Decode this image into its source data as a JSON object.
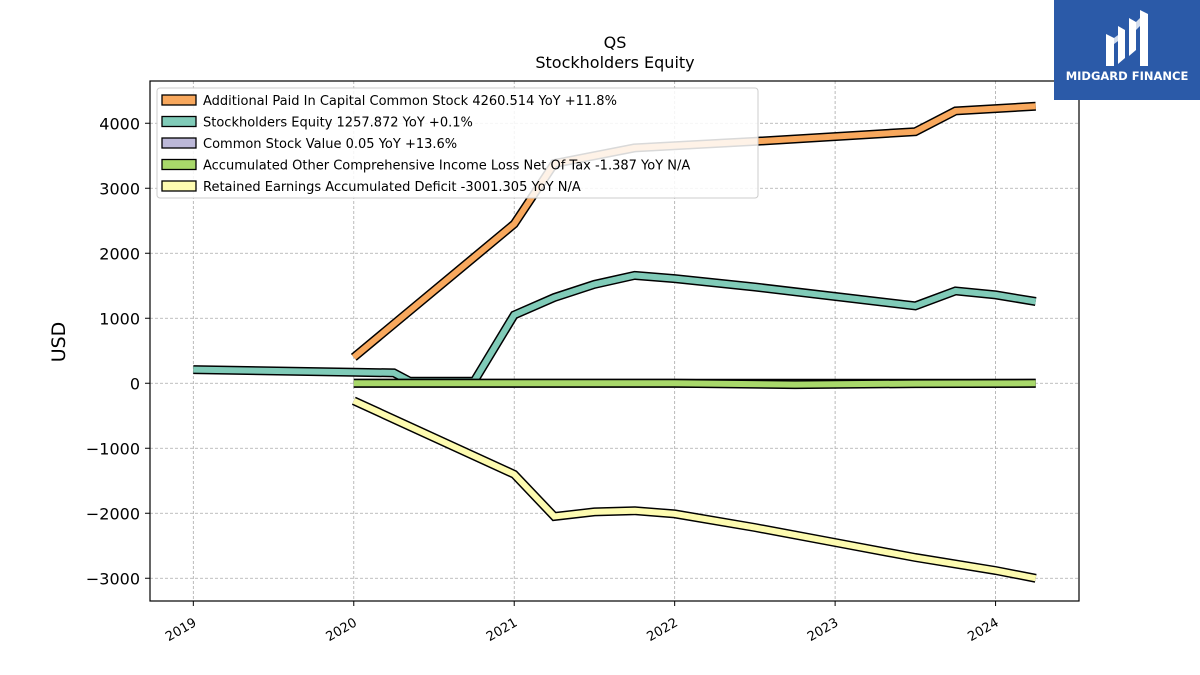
{
  "chart_data": {
    "type": "line",
    "title": "QS",
    "subtitle": "Stockholders  Equity",
    "ylabel": "USD",
    "xlabel": "",
    "ylim": [
      -3350,
      4650
    ],
    "xlim": [
      2018.73,
      2024.52
    ],
    "yticks": [
      4000,
      3000,
      2000,
      1000,
      0,
      -1000,
      -2000,
      -3000
    ],
    "ytick_labels": [
      "4000",
      "3000",
      "2000",
      "1000",
      "0",
      "−1000",
      "−2000",
      "−3000"
    ],
    "xticks": [
      2019,
      2020,
      2021,
      2022,
      2023,
      2024
    ],
    "xtick_labels": [
      "2019",
      "2020",
      "2021",
      "2022",
      "2023",
      "2024"
    ],
    "grid": true,
    "legend_position": "top-left",
    "series": [
      {
        "name": "Additional Paid In Capital Common Stock",
        "legend": "Additional Paid In Capital Common Stock  4260.514 YoY +11.8%",
        "color": "#f8a85d",
        "x": [
          2020.0,
          2021.0,
          2021.25,
          2021.75,
          2022.5,
          2023.5,
          2023.75,
          2024.25
        ],
        "y": [
          400,
          2450,
          3380,
          3620,
          3720,
          3870,
          4190,
          4260
        ]
      },
      {
        "name": "Stockholders Equity",
        "legend": "Stockholders Equity  1257.872 YoY +0.1%",
        "color": "#80cbb8",
        "x": [
          2019.0,
          2020.0,
          2020.25,
          2020.35,
          2020.75,
          2021.0,
          2021.25,
          2021.5,
          2021.75,
          2022.0,
          2022.5,
          2023.5,
          2023.75,
          2024.0,
          2024.25
        ],
        "y": [
          210,
          170,
          160,
          30,
          30,
          1050,
          1320,
          1520,
          1660,
          1610,
          1480,
          1190,
          1420,
          1360,
          1258
        ]
      },
      {
        "name": "Common Stock Value",
        "legend": "Common Stock Value  0.05 YoY +13.6%",
        "color": "#bcb8d8",
        "x": [
          2020.0,
          2024.25
        ],
        "y": [
          0.04,
          0.05
        ]
      },
      {
        "name": "Accumulated Other Comprehensive Income Loss Net Of Tax",
        "legend": "Accumulated Other Comprehensive Income Loss Net Of Tax  -1.387 YoY N/A",
        "color": "#a8d86a",
        "x": [
          2020.0,
          2021.0,
          2022.0,
          2022.75,
          2023.5,
          2024.25
        ],
        "y": [
          0,
          0,
          0,
          -20,
          -5,
          -1.387
        ]
      },
      {
        "name": "Retained Earnings Accumulated Deficit",
        "legend": "Retained Earnings Accumulated Deficit  -3001.305 YoY N/A",
        "color": "#fdfbb0",
        "x": [
          2020.0,
          2021.0,
          2021.25,
          2021.5,
          2021.75,
          2022.0,
          2022.5,
          2023.0,
          2023.5,
          2024.0,
          2024.25
        ],
        "y": [
          -270,
          -1400,
          -2050,
          -1980,
          -1960,
          -2010,
          -2220,
          -2450,
          -2680,
          -2880,
          -3001
        ]
      }
    ]
  },
  "brand": {
    "name": "MIDGARD FINANCE",
    "background": "#2b5aa8"
  }
}
